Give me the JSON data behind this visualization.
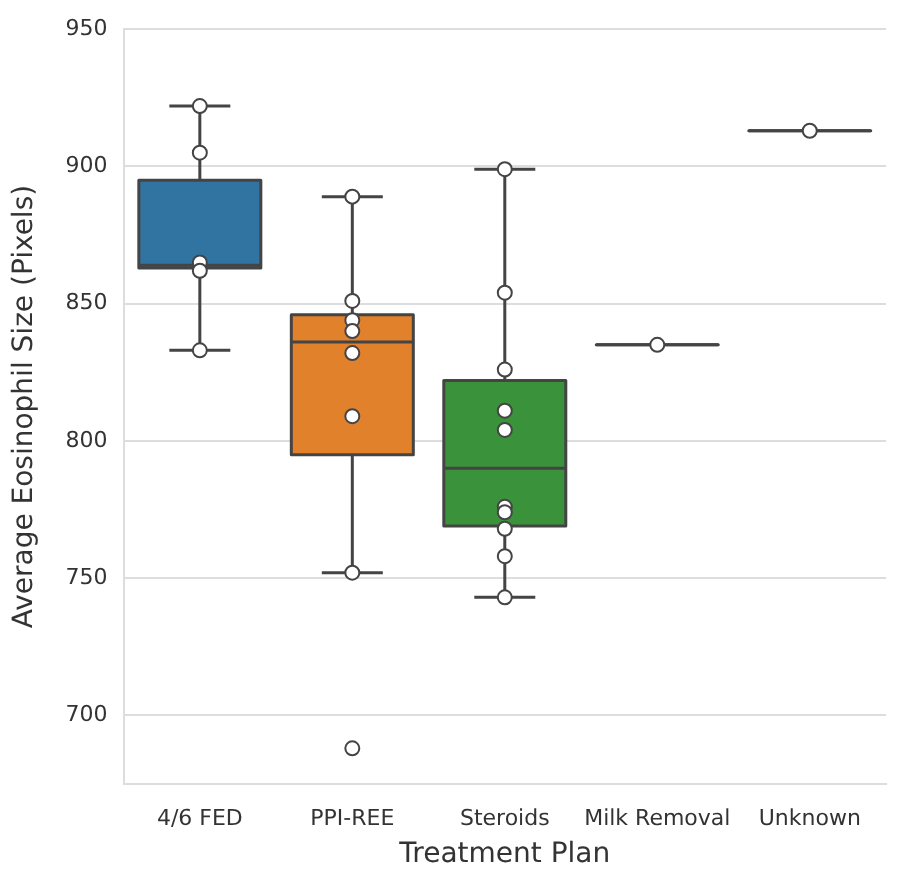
{
  "chart_data": {
    "type": "box",
    "xlabel": "Treatment Plan",
    "ylabel": "Average Eosinophil Size (Pixels)",
    "categories": [
      "4/6 FED",
      "PPI-REE",
      "Steroids",
      "Milk Removal",
      "Unknown"
    ],
    "colors": [
      "#3274a1",
      "#e1812c",
      "#3a923a",
      "#444444",
      "#444444"
    ],
    "boxes": [
      {
        "low": 833,
        "q1": 863,
        "median": 864,
        "q3": 895,
        "high": 922
      },
      {
        "low": 752,
        "q1": 795,
        "median": 836,
        "q3": 846,
        "high": 889,
        "outliers": [
          688
        ]
      },
      {
        "low": 743,
        "q1": 769,
        "median": 790,
        "q3": 822,
        "high": 899
      },
      {
        "low": 835,
        "q1": 835,
        "median": 835,
        "q3": 835,
        "high": 835
      },
      {
        "low": 913,
        "q1": 913,
        "median": 913,
        "q3": 913,
        "high": 913
      }
    ],
    "series": [
      {
        "type": "scatter",
        "color": "#ffffff",
        "marker": "circle",
        "x": [
          "4/6 FED",
          "4/6 FED",
          "4/6 FED",
          "4/6 FED",
          "4/6 FED",
          "PPI-REE",
          "PPI-REE",
          "PPI-REE",
          "PPI-REE",
          "PPI-REE",
          "PPI-REE",
          "PPI-REE",
          "Steroids",
          "Steroids",
          "Steroids",
          "Steroids",
          "Steroids",
          "Steroids",
          "Steroids",
          "Steroids",
          "Steroids",
          "Steroids",
          "Milk Removal",
          "Unknown"
        ],
        "values": [
          922,
          905,
          865,
          862,
          833,
          889,
          851,
          844,
          840,
          832,
          809,
          752,
          899,
          854,
          826,
          811,
          804,
          776,
          774,
          768,
          758,
          743,
          835,
          913
        ]
      }
    ],
    "ylim": [
      675,
      950
    ],
    "yticks": [
      700,
      750,
      800,
      850,
      900,
      950
    ],
    "grid": "y",
    "legend": false
  }
}
